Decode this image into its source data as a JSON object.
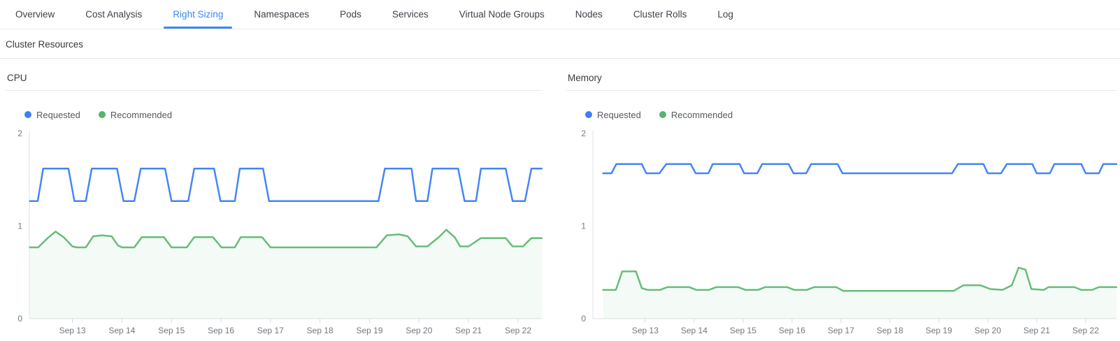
{
  "tab_bar": {
    "tabs": [
      {
        "label": "Overview",
        "active": false
      },
      {
        "label": "Cost Analysis",
        "active": false
      },
      {
        "label": "Right Sizing",
        "active": true
      },
      {
        "label": "Namespaces",
        "active": false
      },
      {
        "label": "Pods",
        "active": false
      },
      {
        "label": "Services",
        "active": false
      },
      {
        "label": "Virtual Node Groups",
        "active": false
      },
      {
        "label": "Nodes",
        "active": false
      },
      {
        "label": "Cluster Rolls",
        "active": false
      },
      {
        "label": "Log",
        "active": false
      }
    ],
    "active_color": "#3c87f0"
  },
  "section": {
    "title": "Cluster Resources"
  },
  "legend": {
    "items": [
      {
        "label": "Requested",
        "color": "#3f7ff2"
      },
      {
        "label": "Recommended",
        "color": "#52b66e"
      }
    ]
  },
  "chart_data": [
    {
      "id": "cpu",
      "type": "line",
      "title": "CPU",
      "xlabel": "",
      "ylabel": "",
      "ylim": [
        0,
        2
      ],
      "yticks": [
        0,
        1,
        2
      ],
      "xlim": [
        12.13,
        22.48
      ],
      "grid": false,
      "legend_position": "top-left",
      "xticks": [
        {
          "x": 13,
          "label": "Sep 13"
        },
        {
          "x": 14,
          "label": "Sep 14"
        },
        {
          "x": 15,
          "label": "Sep 15"
        },
        {
          "x": 16,
          "label": "Sep 16"
        },
        {
          "x": 17,
          "label": "Sep 17"
        },
        {
          "x": 18,
          "label": "Sep 18"
        },
        {
          "x": 19,
          "label": "Sep 19"
        },
        {
          "x": 20,
          "label": "Sep 20"
        },
        {
          "x": 21,
          "label": "Sep 21"
        },
        {
          "x": 22,
          "label": "Sep 22"
        }
      ],
      "series": [
        {
          "name": "Recommended",
          "color": "#67bd79",
          "area_fill": "rgba(103,189,121,0.07)",
          "points": [
            [
              12.14,
              0.77
            ],
            [
              12.31,
              0.77
            ],
            [
              12.5,
              0.87
            ],
            [
              12.66,
              0.94
            ],
            [
              12.82,
              0.88
            ],
            [
              13.0,
              0.78
            ],
            [
              13.08,
              0.77
            ],
            [
              13.27,
              0.77
            ],
            [
              13.42,
              0.89
            ],
            [
              13.6,
              0.9
            ],
            [
              13.79,
              0.89
            ],
            [
              13.92,
              0.79
            ],
            [
              14.0,
              0.77
            ],
            [
              14.25,
              0.77
            ],
            [
              14.4,
              0.88
            ],
            [
              14.85,
              0.88
            ],
            [
              15.0,
              0.77
            ],
            [
              15.31,
              0.77
            ],
            [
              15.46,
              0.88
            ],
            [
              15.84,
              0.88
            ],
            [
              16.01,
              0.77
            ],
            [
              16.28,
              0.77
            ],
            [
              16.4,
              0.88
            ],
            [
              16.83,
              0.88
            ],
            [
              17.0,
              0.77
            ],
            [
              19.14,
              0.77
            ],
            [
              19.35,
              0.9
            ],
            [
              19.6,
              0.91
            ],
            [
              19.77,
              0.89
            ],
            [
              19.94,
              0.78
            ],
            [
              20.17,
              0.78
            ],
            [
              20.4,
              0.88
            ],
            [
              20.55,
              0.96
            ],
            [
              20.72,
              0.88
            ],
            [
              20.83,
              0.78
            ],
            [
              21.0,
              0.78
            ],
            [
              21.25,
              0.87
            ],
            [
              21.75,
              0.87
            ],
            [
              21.89,
              0.78
            ],
            [
              22.1,
              0.78
            ],
            [
              22.27,
              0.87
            ],
            [
              22.48,
              0.87
            ]
          ]
        },
        {
          "name": "Requested",
          "color": "#4486f4",
          "points": [
            [
              12.14,
              1.27
            ],
            [
              12.3,
              1.27
            ],
            [
              12.41,
              1.62
            ],
            [
              12.92,
              1.62
            ],
            [
              13.04,
              1.27
            ],
            [
              13.27,
              1.27
            ],
            [
              13.39,
              1.62
            ],
            [
              13.9,
              1.62
            ],
            [
              14.03,
              1.27
            ],
            [
              14.25,
              1.27
            ],
            [
              14.38,
              1.62
            ],
            [
              14.87,
              1.62
            ],
            [
              15.0,
              1.27
            ],
            [
              15.34,
              1.27
            ],
            [
              15.46,
              1.62
            ],
            [
              15.86,
              1.62
            ],
            [
              15.99,
              1.27
            ],
            [
              16.28,
              1.27
            ],
            [
              16.38,
              1.62
            ],
            [
              16.85,
              1.62
            ],
            [
              16.97,
              1.27
            ],
            [
              19.18,
              1.27
            ],
            [
              19.31,
              1.62
            ],
            [
              19.85,
              1.62
            ],
            [
              19.94,
              1.27
            ],
            [
              20.17,
              1.27
            ],
            [
              20.27,
              1.62
            ],
            [
              20.79,
              1.62
            ],
            [
              20.92,
              1.27
            ],
            [
              21.15,
              1.27
            ],
            [
              21.25,
              1.62
            ],
            [
              21.75,
              1.62
            ],
            [
              21.89,
              1.27
            ],
            [
              22.14,
              1.27
            ],
            [
              22.27,
              1.62
            ],
            [
              22.48,
              1.62
            ]
          ]
        }
      ]
    },
    {
      "id": "mem",
      "type": "line",
      "title": "Memory",
      "xlabel": "",
      "ylabel": "",
      "ylim": [
        0,
        2
      ],
      "yticks": [
        0,
        1,
        2
      ],
      "xlim": [
        11.93,
        22.63
      ],
      "grid": false,
      "legend_position": "top-left",
      "xticks": [
        {
          "x": 13,
          "label": "Sep 13"
        },
        {
          "x": 14,
          "label": "Sep 14"
        },
        {
          "x": 15,
          "label": "Sep 15"
        },
        {
          "x": 16,
          "label": "Sep 16"
        },
        {
          "x": 17,
          "label": "Sep 17"
        },
        {
          "x": 18,
          "label": "Sep 18"
        },
        {
          "x": 19,
          "label": "Sep 19"
        },
        {
          "x": 20,
          "label": "Sep 20"
        },
        {
          "x": 21,
          "label": "Sep 21"
        },
        {
          "x": 22,
          "label": "Sep 22"
        }
      ],
      "series": [
        {
          "name": "Recommended",
          "color": "#67bd79",
          "area_fill": "rgba(103,189,121,0.07)",
          "points": [
            [
              12.14,
              0.31
            ],
            [
              12.4,
              0.31
            ],
            [
              12.53,
              0.51
            ],
            [
              12.81,
              0.51
            ],
            [
              12.93,
              0.33
            ],
            [
              13.05,
              0.31
            ],
            [
              13.3,
              0.31
            ],
            [
              13.45,
              0.34
            ],
            [
              13.9,
              0.34
            ],
            [
              14.05,
              0.31
            ],
            [
              14.3,
              0.31
            ],
            [
              14.45,
              0.34
            ],
            [
              14.9,
              0.34
            ],
            [
              15.05,
              0.31
            ],
            [
              15.3,
              0.31
            ],
            [
              15.45,
              0.34
            ],
            [
              15.9,
              0.34
            ],
            [
              16.05,
              0.31
            ],
            [
              16.3,
              0.31
            ],
            [
              16.45,
              0.34
            ],
            [
              16.9,
              0.34
            ],
            [
              17.05,
              0.3
            ],
            [
              19.3,
              0.3
            ],
            [
              19.5,
              0.36
            ],
            [
              19.85,
              0.36
            ],
            [
              20.05,
              0.32
            ],
            [
              20.3,
              0.31
            ],
            [
              20.49,
              0.36
            ],
            [
              20.63,
              0.55
            ],
            [
              20.77,
              0.53
            ],
            [
              20.89,
              0.32
            ],
            [
              21.14,
              0.31
            ],
            [
              21.24,
              0.34
            ],
            [
              21.77,
              0.34
            ],
            [
              21.91,
              0.31
            ],
            [
              22.13,
              0.31
            ],
            [
              22.27,
              0.34
            ],
            [
              22.63,
              0.34
            ]
          ]
        },
        {
          "name": "Requested",
          "color": "#4486f4",
          "points": [
            [
              12.14,
              1.57
            ],
            [
              12.31,
              1.57
            ],
            [
              12.41,
              1.67
            ],
            [
              12.93,
              1.67
            ],
            [
              13.02,
              1.57
            ],
            [
              13.29,
              1.57
            ],
            [
              13.43,
              1.67
            ],
            [
              13.93,
              1.67
            ],
            [
              14.03,
              1.57
            ],
            [
              14.29,
              1.57
            ],
            [
              14.38,
              1.67
            ],
            [
              14.93,
              1.67
            ],
            [
              15.02,
              1.57
            ],
            [
              15.29,
              1.57
            ],
            [
              15.39,
              1.67
            ],
            [
              15.93,
              1.67
            ],
            [
              16.03,
              1.57
            ],
            [
              16.29,
              1.57
            ],
            [
              16.39,
              1.67
            ],
            [
              16.93,
              1.67
            ],
            [
              17.03,
              1.57
            ],
            [
              19.27,
              1.57
            ],
            [
              19.39,
              1.67
            ],
            [
              19.91,
              1.67
            ],
            [
              20.0,
              1.57
            ],
            [
              20.27,
              1.57
            ],
            [
              20.39,
              1.67
            ],
            [
              20.91,
              1.67
            ],
            [
              21.0,
              1.57
            ],
            [
              21.27,
              1.57
            ],
            [
              21.36,
              1.67
            ],
            [
              21.91,
              1.67
            ],
            [
              22.0,
              1.57
            ],
            [
              22.27,
              1.57
            ],
            [
              22.36,
              1.67
            ],
            [
              22.63,
              1.67
            ]
          ]
        }
      ]
    }
  ]
}
